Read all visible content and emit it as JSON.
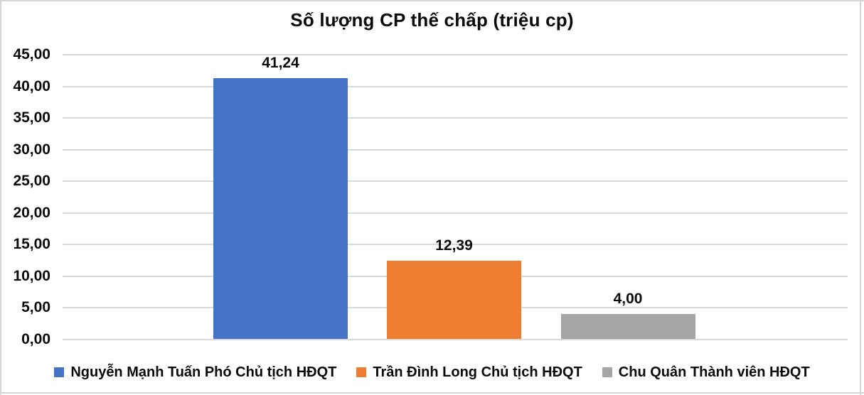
{
  "chart_data": {
    "type": "bar",
    "title": "Số lượng CP thế chấp (triệu cp)",
    "categories": [
      "Nguyễn Mạnh Tuấn Phó Chủ tịch HĐQT",
      "Trần Đình Long Chủ tịch HĐQT",
      "Chu Quân Thành viên HĐQT"
    ],
    "series": [
      {
        "name": "Nguyễn Mạnh Tuấn Phó Chủ tịch HĐQT",
        "value": 41.24,
        "value_label": "41,24",
        "color": "#4472C4"
      },
      {
        "name": "Trần Đình Long Chủ tịch HĐQT",
        "value": 12.39,
        "value_label": "12,39",
        "color": "#ED7D31"
      },
      {
        "name": "Chu Quân Thành viên HĐQT",
        "value": 4.0,
        "value_label": "4,00",
        "color": "#A5A5A5"
      }
    ],
    "xlabel": "",
    "ylabel": "",
    "ylim": [
      0,
      45
    ],
    "ytick_step": 5,
    "ytick_labels": [
      "0,00",
      "5,00",
      "10,00",
      "15,00",
      "20,00",
      "25,00",
      "30,00",
      "35,00",
      "40,00",
      "45,00"
    ],
    "grid": true,
    "gridline_color": "#d9d9d9",
    "legend_position": "bottom",
    "legend": [
      {
        "label": "Nguyễn Mạnh Tuấn Phó Chủ tịch HĐQT",
        "color": "#4472C4"
      },
      {
        "label": "Trần Đình Long Chủ tịch HĐQT",
        "color": "#ED7D31"
      },
      {
        "label": "Chu Quân Thành viên HĐQT",
        "color": "#A5A5A5"
      }
    ],
    "number_format": "decimal-comma"
  }
}
